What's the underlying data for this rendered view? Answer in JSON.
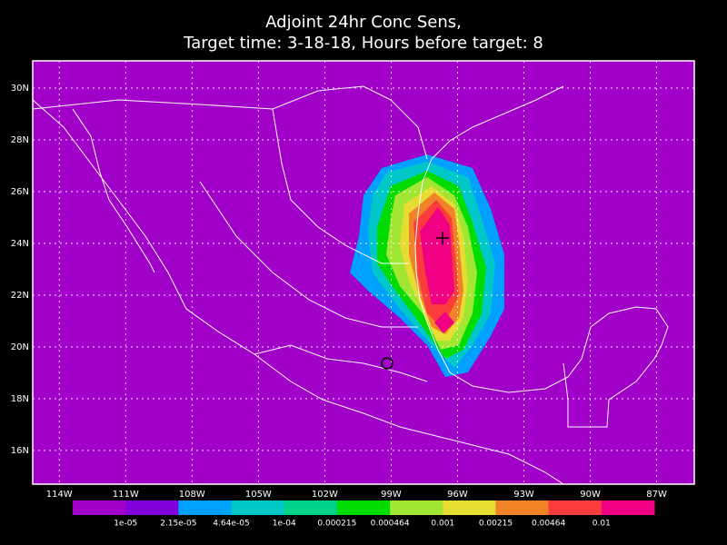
{
  "map": {
    "title": [
      "Adjoint 24hr Conc Sens,",
      "Target time: 3-18-18, Hours before target: 8"
    ],
    "background": "#a000c8",
    "xlim": [
      -115.2,
      -85.3
    ],
    "ylim": [
      14.7,
      31.05
    ],
    "xticks": [
      {
        "value": -114,
        "label": "114W"
      },
      {
        "value": -111,
        "label": "111W"
      },
      {
        "value": -108,
        "label": "108W"
      },
      {
        "value": -105,
        "label": "105W"
      },
      {
        "value": -102,
        "label": "102W"
      },
      {
        "value": -99,
        "label": "99W"
      },
      {
        "value": -96,
        "label": "96W"
      },
      {
        "value": -93,
        "label": "93W"
      },
      {
        "value": -90,
        "label": "90W"
      },
      {
        "value": -87,
        "label": "87W"
      }
    ],
    "yticks": [
      {
        "value": 16,
        "label": "16N"
      },
      {
        "value": 18,
        "label": "18N"
      },
      {
        "value": 20,
        "label": "20N"
      },
      {
        "value": 22,
        "label": "22N"
      },
      {
        "value": 24,
        "label": "24N"
      },
      {
        "value": 26,
        "label": "26N"
      },
      {
        "value": 28,
        "label": "28N"
      },
      {
        "value": 30,
        "label": "30N"
      }
    ],
    "colorbar": {
      "colors": [
        "#a000c8",
        "#8200dc",
        "#00a0ff",
        "#00c8c8",
        "#00d28c",
        "#00dc00",
        "#a0e632",
        "#e6dc32",
        "#f08228",
        "#fa3c3c",
        "#f00082"
      ],
      "labels": [
        "1e-05",
        "2.15e-05",
        "4.64e-05",
        "1e-04",
        "0.000215",
        "0.000464",
        "0.001",
        "0.00215",
        "0.00464",
        "0.01"
      ]
    }
  }
}
